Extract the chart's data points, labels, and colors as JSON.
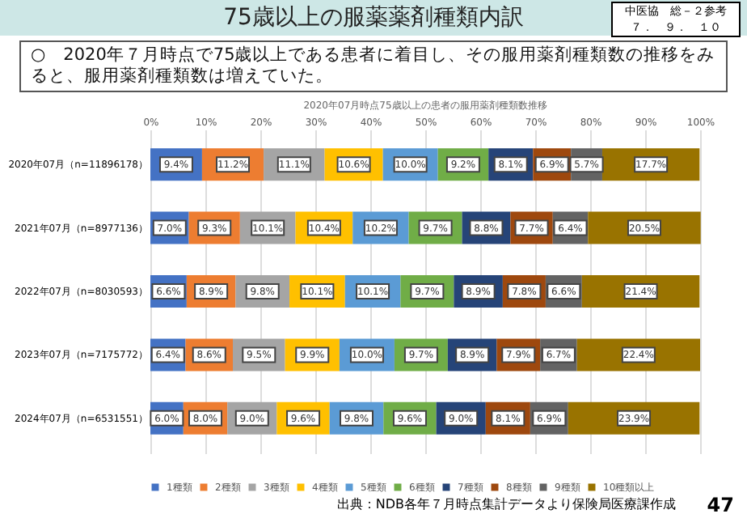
{
  "chart_data": {
    "type": "bar",
    "orientation": "horizontal",
    "stacked": true,
    "title": "75歳以上の服薬薬剤種類内訳",
    "subtitle": "○　2020年７月時点で75歳以上である患者に着目し、その服用薬剤種類数の推移をみると、服用薬剤種類数は増えていた。",
    "annotations": [
      "2020年07月時点75歳以上の患者の服用薬剤種類数推移",
      "中医協　総－２参考",
      "７．　９．　１０",
      "出典：NDB各年７月時点集計データより保険局医療課作成",
      "47"
    ],
    "categories": [
      "2020年07月（n=11896178）",
      "2021年07月（n=8977136）",
      "2022年07月（n=8030593）",
      "2023年07月（n=7175772）",
      "2024年07月（n=6531551）"
    ],
    "series": [
      {
        "name": "1種類",
        "color": "#4472c4",
        "values": [
          9.4,
          7.0,
          6.6,
          6.4,
          6.0
        ],
        "value_labels": [
          "9.4%",
          "7.0%",
          "6.6%",
          "6.4%",
          "6.0%"
        ]
      },
      {
        "name": "2種類",
        "color": "#ed7d31",
        "values": [
          11.2,
          9.3,
          8.9,
          8.6,
          8.0
        ],
        "value_labels": [
          "11.2%",
          "9.3%",
          "8.9%",
          "8.6%",
          "8.0%"
        ]
      },
      {
        "name": "3種類",
        "color": "#a5a5a5",
        "values": [
          11.1,
          10.1,
          9.8,
          9.5,
          9.0
        ],
        "value_labels": [
          "11.1%",
          "10.1%",
          "9.8%",
          "9.5%",
          "9.0%"
        ]
      },
      {
        "name": "4種類",
        "color": "#ffc000",
        "values": [
          10.6,
          10.4,
          10.1,
          9.9,
          9.6
        ],
        "value_labels": [
          "10.6%",
          "10.4%",
          "10.1%",
          "9.9%",
          "9.6%"
        ]
      },
      {
        "name": "5種類",
        "color": "#5b9bd5",
        "values": [
          10.0,
          10.2,
          10.1,
          10.0,
          9.8
        ],
        "value_labels": [
          "10.0%",
          "10.2%",
          "10.1%",
          "10.0%",
          "9.8%"
        ]
      },
      {
        "name": "6種類",
        "color": "#70ad47",
        "values": [
          9.2,
          9.7,
          9.7,
          9.7,
          9.6
        ],
        "value_labels": [
          "9.2%",
          "9.7%",
          "9.7%",
          "9.7%",
          "9.6%"
        ]
      },
      {
        "name": "7種類",
        "color": "#264478",
        "values": [
          8.1,
          8.8,
          8.9,
          8.9,
          9.0
        ],
        "value_labels": [
          "8.1%",
          "8.8%",
          "8.9%",
          "8.9%",
          "9.0%"
        ]
      },
      {
        "name": "8種類",
        "color": "#9e480e",
        "values": [
          6.9,
          7.7,
          7.8,
          7.9,
          8.1
        ],
        "value_labels": [
          "6.9%",
          "7.7%",
          "7.8%",
          "7.9%",
          "8.1%"
        ]
      },
      {
        "name": "9種類",
        "color": "#636363",
        "values": [
          5.7,
          6.4,
          6.6,
          6.7,
          6.9
        ],
        "value_labels": [
          "5.7%",
          "6.4%",
          "6.6%",
          "6.7%",
          "6.9%"
        ]
      },
      {
        "name": "10種類以上",
        "color": "#997300",
        "values": [
          17.7,
          20.5,
          21.4,
          22.4,
          23.9
        ],
        "value_labels": [
          "17.7%",
          "20.5%",
          "21.4%",
          "22.4%",
          "23.9%"
        ]
      }
    ],
    "xlim": [
      0,
      100
    ],
    "xticks": [
      {
        "value": 0,
        "label": "0%"
      },
      {
        "value": 10,
        "label": "10%"
      },
      {
        "value": 20,
        "label": "20%"
      },
      {
        "value": 30,
        "label": "30%"
      },
      {
        "value": 40,
        "label": "40%"
      },
      {
        "value": 50,
        "label": "50%"
      },
      {
        "value": 60,
        "label": "60%"
      },
      {
        "value": 70,
        "label": "70%"
      },
      {
        "value": 80,
        "label": "80%"
      },
      {
        "value": 90,
        "label": "90%"
      },
      {
        "value": 100,
        "label": "100%"
      }
    ],
    "grid": "x",
    "legend": "bottom"
  }
}
